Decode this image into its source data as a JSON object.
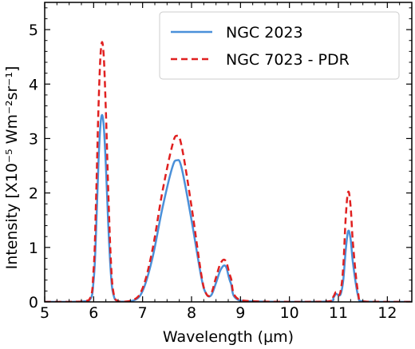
{
  "chart_data": {
    "type": "line",
    "xlabel": "Wavelength (μm)",
    "ylabel": "Intensity [X10⁻⁵ Wm⁻²sr⁻¹]",
    "xlim": [
      5,
      12.5
    ],
    "ylim": [
      0,
      5.5
    ],
    "x_ticks": [
      "5",
      "6",
      "7",
      "8",
      "9",
      "10",
      "11",
      "12"
    ],
    "y_ticks": [
      "0",
      "1",
      "2",
      "3",
      "4",
      "5"
    ],
    "grid": false,
    "legend_position": "upper right",
    "x": [
      5.0,
      5.5,
      5.9,
      6.0,
      6.05,
      6.1,
      6.15,
      6.2,
      6.25,
      6.3,
      6.35,
      6.4,
      6.5,
      6.8,
      7.0,
      7.2,
      7.4,
      7.6,
      7.7,
      7.8,
      8.0,
      8.2,
      8.3,
      8.4,
      8.5,
      8.6,
      8.7,
      8.8,
      9.0,
      10.0,
      10.8,
      10.9,
      10.95,
      11.0,
      11.05,
      11.1,
      11.15,
      11.2,
      11.25,
      11.3,
      11.4,
      11.5,
      12.0,
      12.5
    ],
    "series": [
      {
        "name": "NGC 2023",
        "color": "#4a90d9",
        "style": "solid",
        "values": [
          0,
          0,
          0.02,
          0.4,
          1.3,
          2.6,
          3.35,
          3.3,
          2.5,
          1.4,
          0.55,
          0.15,
          0.01,
          0.02,
          0.2,
          0.8,
          1.7,
          2.45,
          2.6,
          2.45,
          1.5,
          0.45,
          0.15,
          0.12,
          0.35,
          0.6,
          0.65,
          0.35,
          0.02,
          0,
          0.01,
          0.08,
          0.15,
          0.12,
          0.15,
          0.4,
          0.95,
          1.3,
          1.15,
          0.7,
          0.12,
          0.01,
          0,
          0
        ]
      },
      {
        "name": "NGC 7023 - PDR",
        "color": "#e02020",
        "style": "dashed",
        "values": [
          0,
          0,
          0.03,
          0.6,
          1.9,
          3.6,
          4.65,
          4.6,
          3.5,
          2.0,
          0.8,
          0.2,
          0.01,
          0.03,
          0.25,
          0.95,
          2.0,
          2.85,
          3.05,
          2.85,
          1.75,
          0.5,
          0.15,
          0.15,
          0.45,
          0.72,
          0.75,
          0.45,
          0.03,
          0,
          0.01,
          0.1,
          0.18,
          0.12,
          0.22,
          0.65,
          1.55,
          2.02,
          1.75,
          1.05,
          0.18,
          0.01,
          0,
          0
        ]
      }
    ]
  }
}
